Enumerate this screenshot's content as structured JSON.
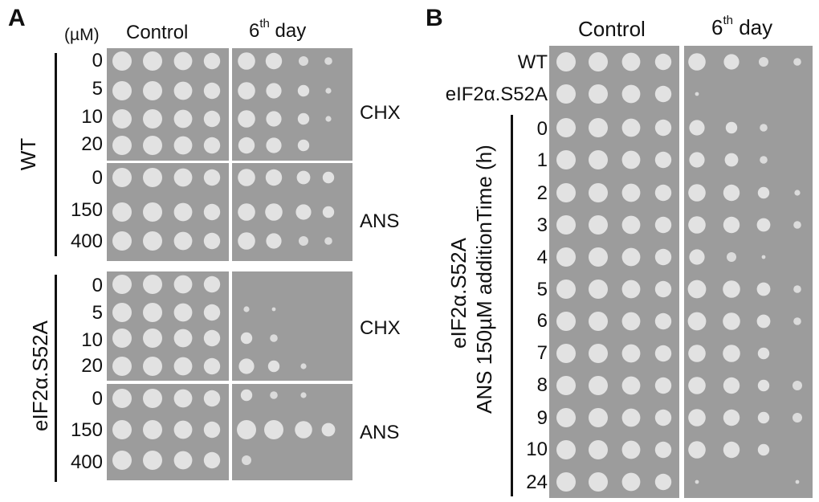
{
  "panel_a": {
    "letter": "A",
    "unit_label": "(µM)",
    "control_label": "Control",
    "day_label_pre": "6",
    "day_label_sup": "th",
    "day_label_post": " day",
    "wt_label": "WT",
    "mutant_label": "eIF2α.S52A",
    "drug_labels": [
      "CHX",
      "ANS",
      "CHX",
      "ANS"
    ],
    "conc_groups": [
      [
        "0",
        "5",
        "10",
        "20"
      ],
      [
        "0",
        "150",
        "400"
      ],
      [
        "0",
        "5",
        "10",
        "20"
      ],
      [
        "0",
        "150",
        "400"
      ]
    ]
  },
  "panel_b": {
    "letter": "B",
    "control_label": "Control",
    "day_label_pre": "6",
    "day_label_sup": "th",
    "day_label_post": " day",
    "row_wt": "WT",
    "row_mutant": "eIF2α.S52A",
    "vertical_label_line1": "eIF2α.S52A",
    "vertical_label_line2": "ANS 150µM additionTime (h)",
    "times": [
      "0",
      "1",
      "2",
      "3",
      "4",
      "5",
      "6",
      "7",
      "8",
      "9",
      "10",
      "24"
    ]
  },
  "colors": {
    "plate": "#9c9c9c",
    "colony": "#e6e6e6",
    "text": "#111111"
  }
}
